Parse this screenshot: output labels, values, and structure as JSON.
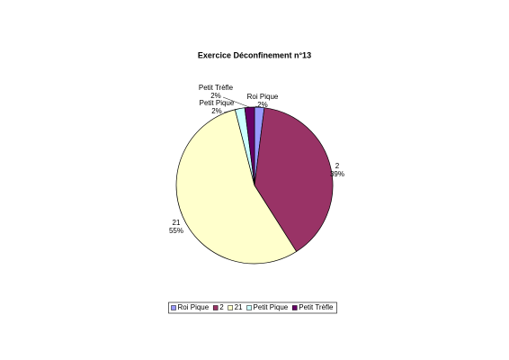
{
  "chart_data": {
    "type": "pie",
    "title": "Exercice Déconfinement n°13",
    "categories": [
      "Roi Pique",
      "2",
      "21",
      "Petit Pique",
      "Petit Trèfle"
    ],
    "values": [
      2,
      39,
      55,
      2,
      2
    ],
    "value_labels": [
      "2%",
      "39%",
      "55%",
      "2%",
      "2%"
    ],
    "colors": [
      "#9999ff",
      "#993366",
      "#ffffcc",
      "#ccffff",
      "#660066"
    ],
    "legend": "bottom"
  }
}
